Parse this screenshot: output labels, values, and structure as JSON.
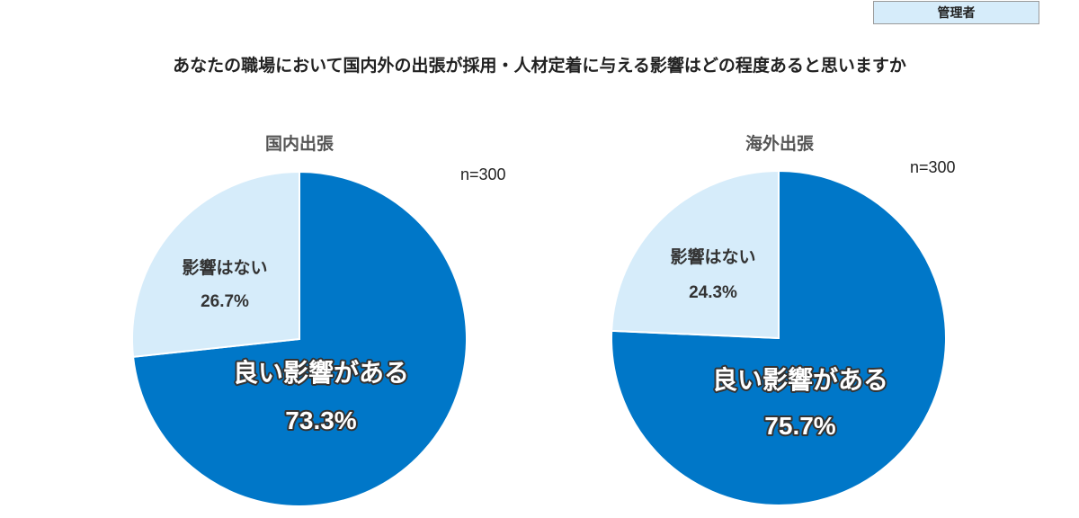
{
  "badge": "管理者",
  "title": "あなたの職場において国内外の出張が採用・人材定着に与える影響はどの程度あると思いますか",
  "colors": {
    "positive": "#0077c8",
    "none": "#d6ecfa"
  },
  "chart_data": [
    {
      "type": "pie",
      "title": "国内出張",
      "n_label": "n=300",
      "slices": [
        {
          "label": "良い影響がある",
          "value": 73.3,
          "display": "73.3%"
        },
        {
          "label": "影響はない",
          "value": 26.7,
          "display": "26.7%"
        }
      ]
    },
    {
      "type": "pie",
      "title": "海外出張",
      "n_label": "n=300",
      "slices": [
        {
          "label": "良い影響がある",
          "value": 75.7,
          "display": "75.7%"
        },
        {
          "label": "影響はない",
          "value": 24.3,
          "display": "24.3%"
        }
      ]
    }
  ]
}
